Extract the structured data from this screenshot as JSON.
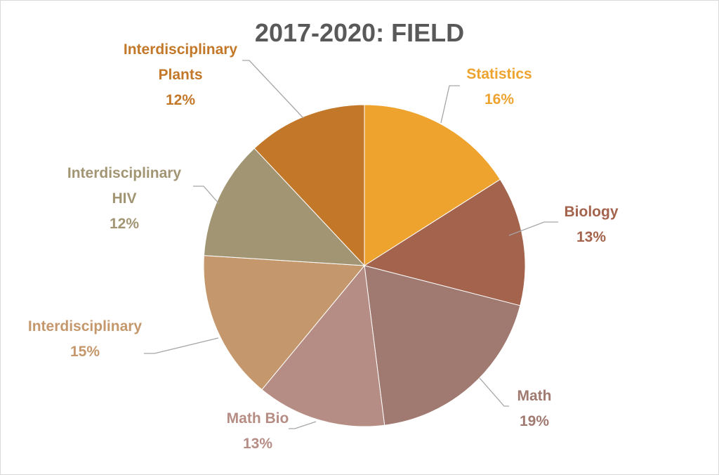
{
  "chart_data": {
    "type": "pie",
    "title": "2017-2020: FIELD",
    "slices": [
      {
        "label_lines": [
          "Statistics"
        ],
        "value": 16,
        "value_label": "16%",
        "color": "#eea32f"
      },
      {
        "label_lines": [
          "Biology"
        ],
        "value": 13,
        "value_label": "13%",
        "color": "#a3634c"
      },
      {
        "label_lines": [
          "Math"
        ],
        "value": 19,
        "value_label": "19%",
        "color": "#a07971"
      },
      {
        "label_lines": [
          "Math Bio"
        ],
        "value": 13,
        "value_label": "13%",
        "color": "#b68d84"
      },
      {
        "label_lines": [
          "Interdisciplinary"
        ],
        "value": 15,
        "value_label": "15%",
        "color": "#c4986c"
      },
      {
        "label_lines": [
          "Interdisciplinary",
          "HIV"
        ],
        "value": 12,
        "value_label": "12%",
        "color": "#a29574"
      },
      {
        "label_lines": [
          "Interdisciplinary",
          "Plants"
        ],
        "value": 12,
        "value_label": "12%",
        "color": "#c37829"
      }
    ],
    "start_angle_deg": 0,
    "direction": "clockwise",
    "legend": "none",
    "data_labels": "outside with leader lines"
  },
  "colors": {
    "title": "#595959",
    "leader_line": "#a6a6a6",
    "border": "#d9d9d9",
    "label_text": {
      "Statistics": "#eea32f",
      "Biology": "#a3634c",
      "Math": "#a07971",
      "Math Bio": "#b68d84",
      "Interdisciplinary": "#c4986c",
      "Interdisciplinary HIV": "#a29574",
      "Interdisciplinary Plants": "#c37829"
    }
  }
}
